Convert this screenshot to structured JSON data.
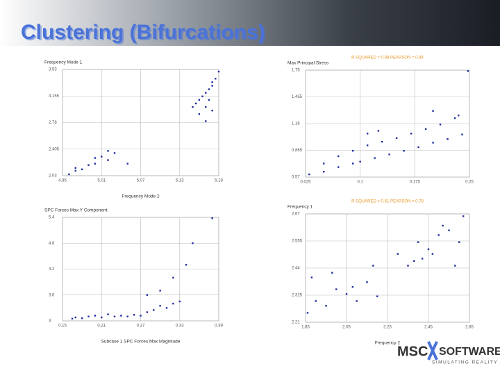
{
  "title": "Clustering (Bifurcations)",
  "logo": {
    "brand": "MSC",
    "name": "SOFTWARE",
    "tagline": "SIMULATING REALITY"
  },
  "chart_data": [
    {
      "type": "scatter",
      "y_label": "Frequency Mode 1",
      "x_label": "Frequency Mode 2",
      "color": "#1f2ba0",
      "x": [
        4.96,
        4.97,
        4.98,
        4.99,
        5.0,
        5.0,
        5.01,
        5.02,
        5.02,
        5.03,
        4.97,
        5.05,
        5.15,
        5.155,
        5.16,
        5.165,
        5.17,
        5.17,
        5.175,
        5.18,
        5.18,
        5.185,
        5.19,
        5.17,
        5.16,
        5.18,
        5.175
      ],
      "y": [
        2.05,
        2.1,
        2.12,
        2.18,
        2.2,
        2.28,
        2.3,
        2.25,
        2.38,
        2.35,
        2.14,
        2.2,
        3.0,
        3.05,
        3.1,
        3.15,
        3.2,
        3.0,
        3.25,
        3.3,
        2.95,
        3.4,
        3.5,
        2.8,
        2.9,
        3.35,
        3.1
      ],
      "xlim": [
        4.95,
        5.19
      ],
      "xticks": [
        4.95,
        5.01,
        5.07,
        5.13,
        5.19
      ],
      "ylim": [
        2.03,
        3.53
      ],
      "yticks": [
        2.03,
        2.405,
        2.78,
        3.155,
        3.53
      ],
      "grid": true
    },
    {
      "type": "scatter",
      "y_label": "Max Principal Stress",
      "annotation": "R SQUARED = 0.89  PEARSON = 0.94",
      "color": "#1f2ba0",
      "x": [
        0.03,
        0.05,
        0.07,
        0.09,
        0.1,
        0.12,
        0.14,
        0.16,
        0.18,
        0.2,
        0.22,
        0.24,
        0.05,
        0.07,
        0.09,
        0.11,
        0.13,
        0.15,
        0.17,
        0.19,
        0.21,
        0.23,
        0.11,
        0.125,
        0.2,
        0.235,
        0.248
      ],
      "y": [
        0.6,
        0.63,
        0.68,
        0.72,
        0.74,
        0.78,
        0.82,
        0.86,
        0.9,
        0.95,
        0.99,
        1.04,
        0.72,
        0.8,
        0.86,
        0.92,
        0.96,
        1.0,
        1.05,
        1.1,
        1.15,
        1.22,
        1.05,
        1.08,
        1.3,
        1.25,
        1.74
      ],
      "xlim": [
        0.025,
        0.25
      ],
      "xticks": [
        0.025,
        0.1,
        0.175,
        0.25
      ],
      "ylim": [
        0.57,
        1.75
      ],
      "yticks": [
        0.57,
        0.865,
        1.16,
        1.455,
        1.75
      ],
      "grid": true
    },
    {
      "type": "scatter",
      "y_label": "SPC Forces Max Y Component",
      "x_label": "Subcase 1 SPC Forces Max Magnitude",
      "color": "#1f2ba0",
      "x": [
        0.165,
        0.17,
        0.18,
        0.19,
        0.2,
        0.21,
        0.22,
        0.23,
        0.24,
        0.25,
        0.26,
        0.27,
        0.28,
        0.29,
        0.3,
        0.31,
        0.32,
        0.33,
        0.28,
        0.3,
        0.32,
        0.34,
        0.35,
        0.38
      ],
      "y": [
        3.05,
        3.08,
        3.06,
        3.1,
        3.12,
        3.08,
        3.15,
        3.1,
        3.12,
        3.1,
        3.14,
        3.12,
        3.2,
        3.25,
        3.35,
        3.3,
        3.4,
        3.45,
        3.6,
        3.7,
        4.0,
        4.3,
        4.8,
        5.38
      ],
      "xlim": [
        0.15,
        0.39
      ],
      "xticks": [
        0.15,
        0.21,
        0.27,
        0.33,
        0.39
      ],
      "ylim": [
        3,
        5.4
      ],
      "yticks": [
        3,
        3.6,
        4.2,
        4.8,
        5.4
      ],
      "grid": true
    },
    {
      "type": "scatter",
      "y_label": "Frequency 1",
      "x_label": "Frequency 2",
      "annotation": "R SQUARED = 0.61  PEARSON = 0.78",
      "color": "#1f2ba0",
      "x": [
        1.86,
        1.9,
        1.95,
        2.0,
        2.05,
        2.1,
        2.15,
        2.2,
        1.88,
        1.98,
        2.08,
        2.18,
        2.3,
        2.35,
        2.4,
        2.45,
        2.5,
        2.55,
        2.6,
        2.42,
        2.47,
        2.52,
        2.38,
        2.58,
        2.62
      ],
      "y": [
        2.25,
        2.3,
        2.28,
        2.35,
        2.33,
        2.3,
        2.38,
        2.32,
        2.4,
        2.42,
        2.36,
        2.45,
        2.5,
        2.45,
        2.55,
        2.52,
        2.58,
        2.6,
        2.55,
        2.48,
        2.5,
        2.62,
        2.47,
        2.45,
        2.66
      ],
      "xlim": [
        1.85,
        2.65
      ],
      "xticks": [
        1.85,
        2.05,
        2.25,
        2.45,
        2.65
      ],
      "ylim": [
        2.21,
        2.67
      ],
      "yticks": [
        2.21,
        2.325,
        2.44,
        2.555,
        2.67
      ],
      "grid": true
    }
  ]
}
